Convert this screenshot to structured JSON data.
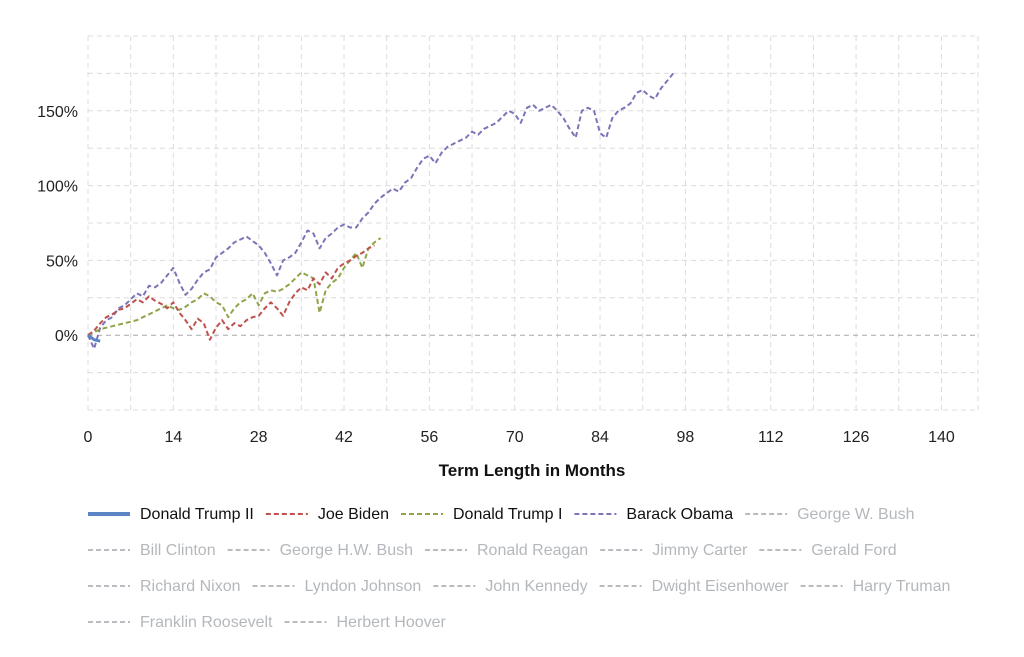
{
  "chart_data": {
    "type": "line",
    "title": "",
    "xlabel": "Term Length in Months",
    "ylabel": "",
    "xlim": [
      0,
      146
    ],
    "ylim": [
      -50,
      200
    ],
    "xticks": [
      0,
      14,
      28,
      42,
      56,
      70,
      84,
      98,
      112,
      126,
      140
    ],
    "xtick_labels": [
      "0",
      "14",
      "28",
      "42",
      "56",
      "70",
      "84",
      "98",
      "112",
      "126",
      "140"
    ],
    "yticks": [
      0,
      50,
      100,
      150
    ],
    "ytick_labels": [
      "0%",
      "50%",
      "100%",
      "150%"
    ],
    "grid": true,
    "legend_position": "bottom",
    "series": [
      {
        "name": "Donald Trump II",
        "color": "#5b84c4",
        "style": "solid",
        "visible": true,
        "x": [
          0,
          1,
          2
        ],
        "y": [
          0,
          -3,
          -4
        ]
      },
      {
        "name": "Joe Biden",
        "color": "#c0504d",
        "style": "dashed",
        "visible": true,
        "x": [
          0,
          1,
          2,
          3,
          4,
          5,
          6,
          7,
          8,
          9,
          10,
          11,
          12,
          13,
          14,
          15,
          16,
          17,
          18,
          19,
          20,
          21,
          22,
          23,
          24,
          25,
          26,
          27,
          28,
          29,
          30,
          31,
          32,
          33,
          34,
          35,
          36,
          37,
          38,
          39,
          40,
          41,
          42,
          43,
          44,
          45,
          46,
          47
        ],
        "y": [
          0,
          3,
          8,
          12,
          14,
          17,
          18,
          21,
          24,
          22,
          26,
          23,
          21,
          18,
          22,
          15,
          10,
          4,
          11,
          8,
          -3,
          5,
          10,
          4,
          8,
          6,
          10,
          12,
          13,
          18,
          22,
          18,
          13,
          22,
          28,
          32,
          30,
          38,
          34,
          42,
          38,
          45,
          48,
          50,
          53,
          55,
          58,
          60
        ]
      },
      {
        "name": "Donald Trump I",
        "color": "#8fa54a",
        "style": "dashed",
        "visible": true,
        "x": [
          0,
          1,
          2,
          3,
          4,
          5,
          6,
          7,
          8,
          9,
          10,
          11,
          12,
          13,
          14,
          15,
          16,
          17,
          18,
          19,
          20,
          21,
          22,
          23,
          24,
          25,
          26,
          27,
          28,
          29,
          30,
          31,
          32,
          33,
          34,
          35,
          36,
          37,
          38,
          39,
          40,
          41,
          42,
          43,
          44,
          45,
          46,
          47,
          48
        ],
        "y": [
          0,
          2,
          4,
          5,
          6,
          7,
          8,
          9,
          10,
          12,
          14,
          16,
          18,
          20,
          18,
          17,
          19,
          22,
          24,
          28,
          26,
          22,
          20,
          12,
          18,
          22,
          24,
          28,
          20,
          28,
          30,
          29,
          31,
          34,
          38,
          42,
          40,
          38,
          15,
          30,
          35,
          38,
          45,
          50,
          55,
          45,
          58,
          62,
          65
        ]
      },
      {
        "name": "Barack Obama",
        "color": "#7a75b8",
        "style": "dashed",
        "visible": true,
        "x": [
          0,
          1,
          2,
          3,
          4,
          5,
          6,
          7,
          8,
          9,
          10,
          11,
          12,
          13,
          14,
          15,
          16,
          17,
          18,
          19,
          20,
          21,
          22,
          23,
          24,
          25,
          26,
          27,
          28,
          29,
          30,
          31,
          32,
          33,
          34,
          35,
          36,
          37,
          38,
          39,
          40,
          41,
          42,
          43,
          44,
          45,
          46,
          47,
          48,
          49,
          50,
          51,
          52,
          53,
          54,
          55,
          56,
          57,
          58,
          59,
          60,
          61,
          62,
          63,
          64,
          65,
          66,
          67,
          68,
          69,
          70,
          71,
          72,
          73,
          74,
          75,
          76,
          77,
          78,
          79,
          80,
          81,
          82,
          83,
          84,
          85,
          86,
          87,
          88,
          89,
          90,
          91,
          92,
          93,
          94,
          95,
          96
        ],
        "y": [
          0,
          -9,
          5,
          10,
          12,
          18,
          20,
          24,
          28,
          26,
          33,
          32,
          35,
          40,
          45,
          35,
          27,
          31,
          37,
          42,
          44,
          52,
          55,
          58,
          62,
          64,
          66,
          63,
          60,
          55,
          48,
          40,
          50,
          52,
          55,
          62,
          70,
          68,
          58,
          65,
          68,
          72,
          74,
          72,
          72,
          78,
          82,
          88,
          92,
          95,
          98,
          96,
          102,
          105,
          112,
          118,
          120,
          115,
          122,
          126,
          128,
          130,
          132,
          136,
          134,
          138,
          140,
          142,
          146,
          150,
          148,
          142,
          152,
          154,
          150,
          152,
          154,
          150,
          145,
          138,
          132,
          150,
          152,
          150,
          135,
          132,
          145,
          150,
          152,
          155,
          162,
          164,
          160,
          158,
          165,
          170,
          175
        ]
      },
      {
        "name": "George W. Bush",
        "color": "#b8bcc0",
        "style": "dashed",
        "visible": false,
        "x": [],
        "y": []
      },
      {
        "name": "Bill Clinton",
        "color": "#b8bcc0",
        "style": "dashed",
        "visible": false,
        "x": [],
        "y": []
      },
      {
        "name": "George H.W. Bush",
        "color": "#b8bcc0",
        "style": "dashed",
        "visible": false,
        "x": [],
        "y": []
      },
      {
        "name": "Ronald Reagan",
        "color": "#b8bcc0",
        "style": "dashed",
        "visible": false,
        "x": [],
        "y": []
      },
      {
        "name": "Jimmy Carter",
        "color": "#b8bcc0",
        "style": "dashed",
        "visible": false,
        "x": [],
        "y": []
      },
      {
        "name": "Gerald Ford",
        "color": "#b8bcc0",
        "style": "dashed",
        "visible": false,
        "x": [],
        "y": []
      },
      {
        "name": "Richard Nixon",
        "color": "#b8bcc0",
        "style": "dashed",
        "visible": false,
        "x": [],
        "y": []
      },
      {
        "name": "Lyndon Johnson",
        "color": "#b8bcc0",
        "style": "dashed",
        "visible": false,
        "x": [],
        "y": []
      },
      {
        "name": "John Kennedy",
        "color": "#b8bcc0",
        "style": "dashed",
        "visible": false,
        "x": [],
        "y": []
      },
      {
        "name": "Dwight Eisenhower",
        "color": "#b8bcc0",
        "style": "dashed",
        "visible": false,
        "x": [],
        "y": []
      },
      {
        "name": "Harry Truman",
        "color": "#b8bcc0",
        "style": "dashed",
        "visible": false,
        "x": [],
        "y": []
      },
      {
        "name": "Franklin Roosevelt",
        "color": "#b8bcc0",
        "style": "dashed",
        "visible": false,
        "x": [],
        "y": []
      },
      {
        "name": "Herbert Hoover",
        "color": "#b8bcc0",
        "style": "dashed",
        "visible": false,
        "x": [],
        "y": []
      }
    ]
  }
}
